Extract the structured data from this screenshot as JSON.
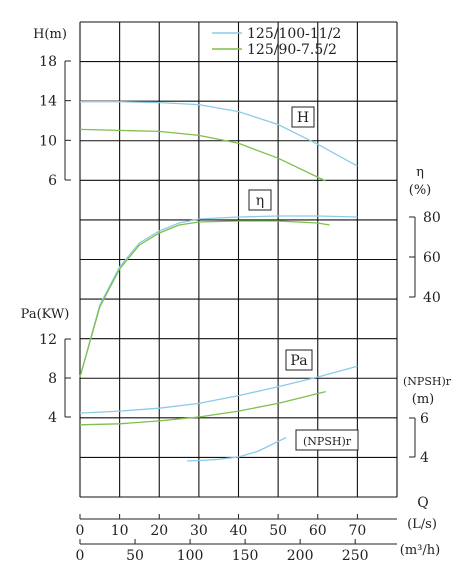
{
  "colors": {
    "series1": "#8ccbe6",
    "series2": "#7fbf4a",
    "ink": "#222222",
    "grid": "#111111"
  },
  "chart_data": {
    "type": "line",
    "xlabel_top": "Q",
    "x_units": "(L/s)",
    "x_ticks": [
      0,
      10,
      20,
      30,
      40,
      50,
      60,
      70
    ],
    "x2_units": "(m³/h)",
    "x2_ticks": [
      0,
      50,
      100,
      150,
      200,
      250
    ],
    "legend": [
      {
        "name": "125/100-11/2",
        "color": "#8ccbe6"
      },
      {
        "name": "125/90-7.5/2",
        "color": "#7fbf4a"
      }
    ],
    "panels": {
      "head": {
        "axis_label": "H(m)",
        "ticks": [
          6,
          10,
          14,
          18
        ],
        "range": [
          4,
          20
        ],
        "tag": "H",
        "series": [
          {
            "name": "125/100-11/2",
            "color": "#8ccbe6",
            "x": [
              0,
              10,
              20,
              30,
              40,
              50,
              60,
              70
            ],
            "y": [
              13.9,
              13.9,
              13.8,
              13.6,
              12.9,
              11.6,
              9.6,
              7.4
            ]
          },
          {
            "name": "125/90-7.5/2",
            "color": "#7fbf4a",
            "x": [
              0,
              10,
              20,
              30,
              40,
              50,
              62
            ],
            "y": [
              11.1,
              11.0,
              10.9,
              10.5,
              9.7,
              8.2,
              5.9
            ]
          }
        ]
      },
      "efficiency": {
        "axis_label": "η",
        "axis_units": "(%)",
        "ticks": [
          40,
          60,
          80
        ],
        "range": [
          40,
          80
        ],
        "tag": "η",
        "series": [
          {
            "name": "125/100-11/2",
            "color": "#8ccbe6",
            "x": [
              0,
              5,
              10,
              15,
              20,
              25,
              30,
              40,
              50,
              60,
              70
            ],
            "y": [
              0,
              36,
              55,
              67,
              73,
              77,
              79,
              80,
              80.5,
              80.5,
              80
            ]
          },
          {
            "name": "125/90-7.5/2",
            "color": "#7fbf4a",
            "x": [
              0,
              5,
              10,
              15,
              20,
              25,
              30,
              40,
              50,
              60,
              63
            ],
            "y": [
              0,
              35,
              54,
              66,
              72,
              76,
              77.5,
              78,
              78,
              77,
              76
            ]
          }
        ]
      },
      "power": {
        "axis_label": "Pa(KW)",
        "ticks": [
          4,
          8,
          12
        ],
        "range": [
          0,
          16
        ],
        "tag": "Pa",
        "series": [
          {
            "name": "125/100-11/2",
            "color": "#8ccbe6",
            "x": [
              0,
              10,
              20,
              30,
              40,
              50,
              60,
              70
            ],
            "y": [
              4.4,
              4.6,
              4.9,
              5.4,
              6.2,
              7.1,
              8.1,
              9.2
            ]
          },
          {
            "name": "125/90-7.5/2",
            "color": "#7fbf4a",
            "x": [
              0,
              10,
              20,
              30,
              40,
              50,
              62
            ],
            "y": [
              3.2,
              3.3,
              3.6,
              4.0,
              4.6,
              5.4,
              6.6
            ]
          }
        ]
      },
      "npsh": {
        "axis_label": "(NPSH)r",
        "axis_units": "(m)",
        "ticks": [
          4,
          6
        ],
        "range": [
          4,
          6
        ],
        "tag": "(NPSH)r",
        "series": [
          {
            "name": "125/100-11/2",
            "color": "#8ccbe6",
            "x": [
              27,
              30,
              35,
              40,
              45,
              52
            ],
            "y": [
              3.8,
              3.82,
              3.88,
              4.0,
              4.3,
              5.0
            ]
          }
        ]
      }
    }
  }
}
